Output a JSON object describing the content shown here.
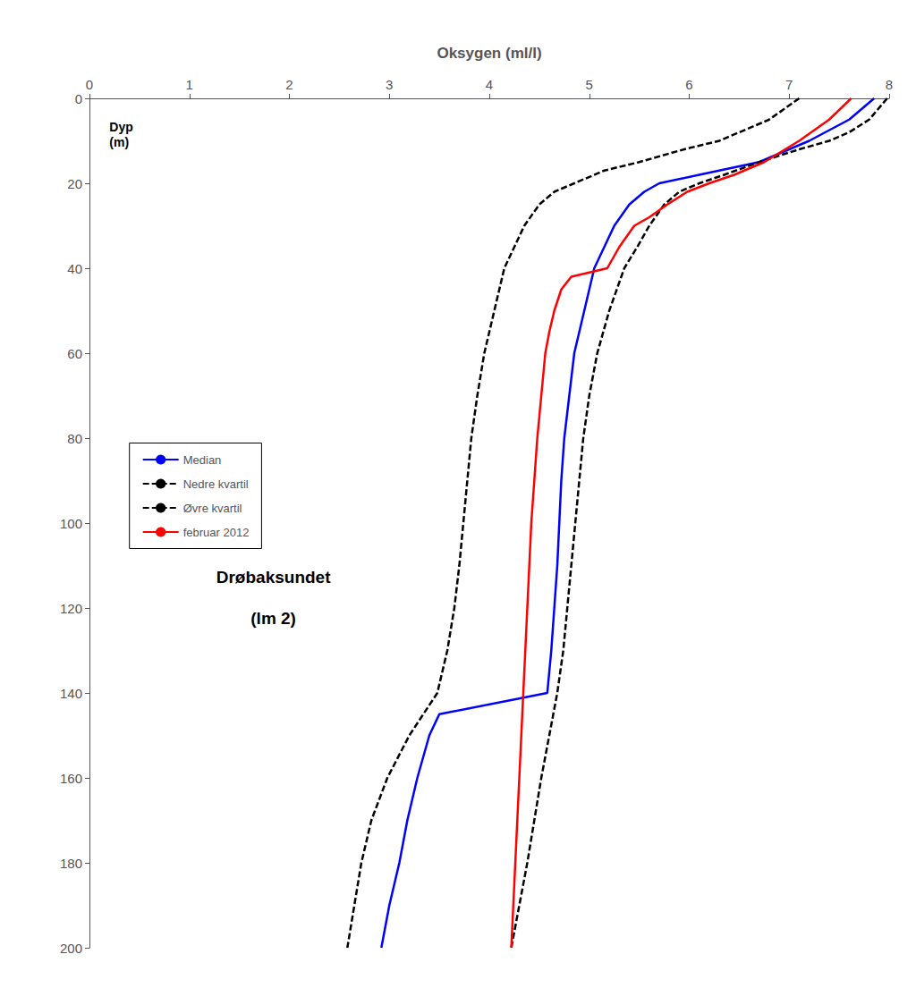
{
  "chart_data": {
    "type": "line",
    "xlabel": "Oksygen (ml/l)",
    "ylabel": "Dyp\n(m)",
    "annotations": [
      "Drøbaksundet",
      "(lm 2)"
    ],
    "xlim": [
      0,
      8
    ],
    "ylim": [
      200,
      0
    ],
    "xticks": [
      0,
      1,
      2,
      3,
      4,
      5,
      6,
      7,
      8
    ],
    "yticks": [
      0,
      20,
      40,
      60,
      80,
      100,
      120,
      140,
      160,
      180,
      200
    ],
    "grid": false,
    "legend": "left",
    "series": [
      {
        "name": "Median",
        "color": "#0000FF",
        "line_style": "solid",
        "x": [
          7.85,
          7.6,
          7.2,
          6.7,
          6.1,
          5.7,
          5.55,
          5.4,
          5.25,
          5.15,
          5.05,
          4.95,
          4.85,
          4.8,
          4.75,
          4.72,
          4.7,
          4.68,
          4.65,
          4.62,
          4.58,
          3.5,
          3.4,
          3.28,
          3.18,
          3.1,
          3.0,
          2.92
        ],
        "y": [
          0,
          5,
          10,
          15,
          18,
          20,
          22,
          25,
          30,
          35,
          40,
          50,
          60,
          70,
          80,
          90,
          100,
          110,
          120,
          130,
          140,
          145,
          150,
          160,
          170,
          180,
          190,
          200
        ]
      },
      {
        "name": "Nedre kvartil",
        "color": "#000000",
        "line_style": "dashed",
        "x": [
          7.1,
          6.8,
          6.3,
          5.95,
          5.5,
          5.15,
          4.85,
          4.65,
          4.5,
          4.35,
          4.25,
          4.15,
          4.05,
          3.95,
          3.88,
          3.82,
          3.78,
          3.74,
          3.7,
          3.65,
          3.58,
          3.48,
          3.2,
          2.98,
          2.82,
          2.72,
          2.65,
          2.58
        ],
        "y": [
          0,
          5,
          10,
          12,
          15,
          17,
          20,
          22,
          25,
          30,
          35,
          40,
          50,
          60,
          70,
          80,
          90,
          100,
          110,
          120,
          130,
          140,
          150,
          160,
          170,
          180,
          190,
          200
        ]
      },
      {
        "name": "Øvre kvartil",
        "color": "#000000",
        "line_style": "dashed",
        "x": [
          7.98,
          7.8,
          7.6,
          7.4,
          7.1,
          6.7,
          6.35,
          6.1,
          5.9,
          5.75,
          5.6,
          5.48,
          5.35,
          5.2,
          5.08,
          5.0,
          4.94,
          4.9,
          4.86,
          4.82,
          4.78,
          4.74,
          4.68,
          4.6,
          4.52,
          4.45,
          4.38,
          4.3,
          4.22
        ],
        "y": [
          0,
          5,
          8,
          10,
          12,
          15,
          18,
          20,
          22,
          25,
          30,
          35,
          40,
          50,
          60,
          70,
          80,
          90,
          100,
          110,
          120,
          130,
          140,
          150,
          160,
          170,
          180,
          190,
          200
        ]
      },
      {
        "name": "februar 2012",
        "color": "#FF0000",
        "line_style": "solid",
        "x": [
          7.62,
          7.4,
          7.1,
          6.75,
          6.45,
          6.2,
          5.98,
          5.78,
          5.6,
          5.45,
          5.3,
          5.18,
          4.82,
          4.72,
          4.65,
          4.6,
          4.56,
          4.52,
          4.48,
          4.45,
          4.42,
          4.4,
          4.38,
          4.36,
          4.34,
          4.32,
          4.3,
          4.28,
          4.26,
          4.24,
          4.22
        ],
        "y": [
          0,
          5,
          10,
          15,
          18,
          20,
          22,
          25,
          28,
          30,
          35,
          40,
          42,
          45,
          50,
          55,
          60,
          70,
          80,
          90,
          100,
          110,
          120,
          130,
          140,
          150,
          160,
          170,
          180,
          190,
          200
        ]
      }
    ]
  }
}
